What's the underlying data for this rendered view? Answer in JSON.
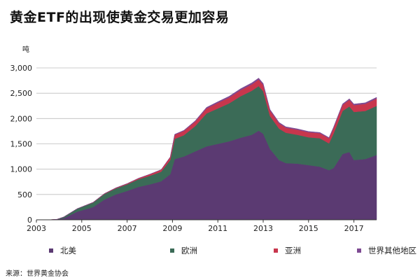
{
  "chart_data": {
    "type": "area",
    "stacked": true,
    "title": "黄金ETF的出现使黄金交易更加容易",
    "ylabel": "吨",
    "xlabel": "",
    "source": "来源：世界黄金协会",
    "ylim": [
      0,
      3000
    ],
    "xlim": [
      2003,
      2018
    ],
    "yticks": [
      "0",
      "500",
      "1,000",
      "1,500",
      "2,000",
      "2,500",
      "3,000"
    ],
    "ytick_values": [
      0,
      500,
      1000,
      1500,
      2000,
      2500,
      3000
    ],
    "xticks": [
      "2003",
      "2005",
      "2007",
      "2009",
      "2011",
      "2013",
      "2015",
      "2017"
    ],
    "xtick_values": [
      2003,
      2005,
      2007,
      2009,
      2011,
      2013,
      2015,
      2017
    ],
    "grid": "horizontal",
    "legend_position": "bottom",
    "x": [
      2003.0,
      2003.5,
      2003.9,
      2004.2,
      2004.8,
      2005.5,
      2006.0,
      2006.5,
      2007.0,
      2007.5,
      2008.0,
      2008.5,
      2008.9,
      2009.1,
      2009.5,
      2010.0,
      2010.5,
      2011.0,
      2011.5,
      2012.0,
      2012.5,
      2012.8,
      2013.0,
      2013.3,
      2013.7,
      2014.0,
      2014.5,
      2015.0,
      2015.5,
      2015.9,
      2016.1,
      2016.5,
      2016.8,
      2017.0,
      2017.5,
      2018.0
    ],
    "series": [
      {
        "name": "北美",
        "color": "#5b3a72",
        "values": [
          0,
          0,
          5,
          30,
          160,
          250,
          400,
          500,
          570,
          650,
          700,
          760,
          900,
          1200,
          1250,
          1350,
          1450,
          1500,
          1550,
          1620,
          1680,
          1760,
          1700,
          1400,
          1180,
          1120,
          1110,
          1080,
          1050,
          980,
          1020,
          1300,
          1340,
          1180,
          1200,
          1280
        ]
      },
      {
        "name": "欧洲",
        "color": "#3b6b57",
        "values": [
          0,
          0,
          5,
          25,
          60,
          90,
          110,
          120,
          130,
          150,
          170,
          190,
          280,
          400,
          420,
          500,
          650,
          700,
          750,
          820,
          870,
          880,
          840,
          650,
          620,
          600,
          570,
          550,
          560,
          530,
          680,
          850,
          900,
          950,
          950,
          970
        ]
      },
      {
        "name": "亚洲",
        "color": "#c8364d",
        "values": [
          0,
          0,
          0,
          0,
          0,
          5,
          8,
          10,
          15,
          20,
          30,
          40,
          60,
          80,
          85,
          90,
          100,
          110,
          115,
          120,
          125,
          130,
          125,
          110,
          105,
          100,
          100,
          100,
          100,
          100,
          110,
          120,
          130,
          135,
          140,
          145
        ]
      },
      {
        "name": "世界其他地区",
        "color": "#7e4a93",
        "values": [
          0,
          0,
          0,
          0,
          0,
          0,
          0,
          0,
          0,
          0,
          0,
          0,
          0,
          10,
          12,
          15,
          20,
          22,
          25,
          28,
          30,
          30,
          28,
          20,
          18,
          18,
          17,
          15,
          15,
          15,
          18,
          20,
          20,
          22,
          22,
          25
        ]
      }
    ]
  }
}
